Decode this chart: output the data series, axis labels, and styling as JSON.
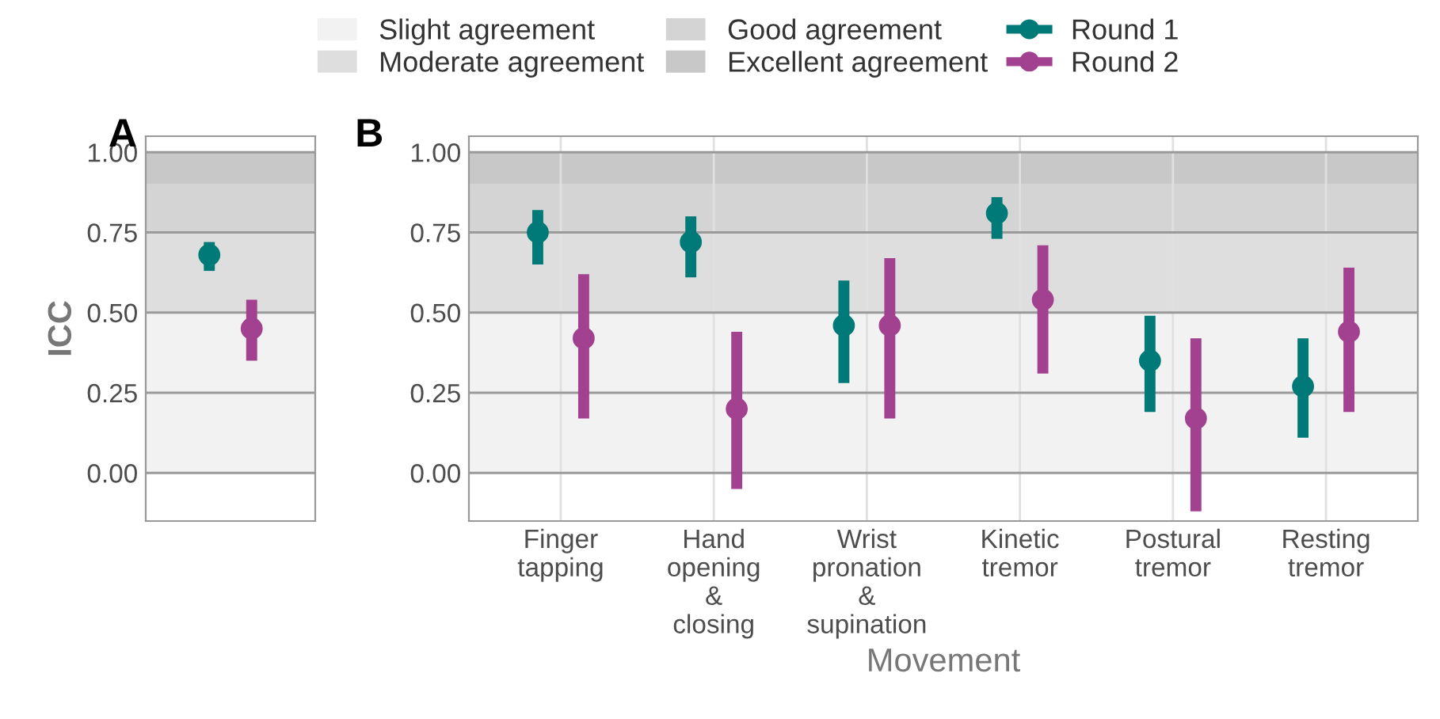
{
  "chart_data": [
    {
      "type": "scatter",
      "title": "A",
      "ylabel": "ICC",
      "categories": [
        null
      ],
      "ylim": [
        -0.15,
        1.05
      ],
      "yticks": [
        {
          "value": 0,
          "label": "0.00"
        },
        {
          "value": 0.25,
          "label": "0.25"
        },
        {
          "value": 0.5,
          "label": "0.50"
        },
        {
          "value": 0.75,
          "label": "0.75"
        },
        {
          "value": 1,
          "label": "1.00"
        }
      ],
      "grid": true,
      "marker": "circle",
      "legend": "top",
      "bands": [
        {
          "axis": "y",
          "from": 0,
          "to": 0.5,
          "label": "Slight agreement",
          "color": "#f2f2f2"
        },
        {
          "axis": "y",
          "from": 0.5,
          "to": 0.75,
          "label": "Moderate agreement",
          "color": "#dedede"
        },
        {
          "axis": "y",
          "from": 0.75,
          "to": 0.9,
          "label": "Good agreement",
          "color": "#d4d4d4"
        },
        {
          "axis": "y",
          "from": 0.9,
          "to": 1.0,
          "label": "Excellent agreement",
          "color": "#c8c8c8"
        }
      ],
      "series": [
        {
          "name": "Round 1",
          "color": "#007a78",
          "values": [
            0.68
          ],
          "errors": [
            [
              0.63,
              0.72
            ]
          ]
        },
        {
          "name": "Round 2",
          "color": "#a2418f",
          "values": [
            0.45
          ],
          "errors": [
            [
              0.35,
              0.54
            ]
          ]
        }
      ]
    },
    {
      "type": "scatter",
      "title": "B",
      "xlabel": "Movement",
      "categories": [
        "Finger\ntapping",
        "Hand\nopening\n&\nclosing",
        "Wrist\npronation\n&\nsupination",
        "Kinetic\ntremor",
        "Postural\ntremor",
        "Resting\ntremor"
      ],
      "ylim": [
        -0.15,
        1.05
      ],
      "yticks": [
        {
          "value": 0,
          "label": "0.00"
        },
        {
          "value": 0.25,
          "label": "0.25"
        },
        {
          "value": 0.5,
          "label": "0.50"
        },
        {
          "value": 0.75,
          "label": "0.75"
        },
        {
          "value": 1,
          "label": "1.00"
        }
      ],
      "grid": true,
      "marker": "circle",
      "bands": [
        {
          "axis": "y",
          "from": 0,
          "to": 0.5,
          "color": "#f2f2f2"
        },
        {
          "axis": "y",
          "from": 0.5,
          "to": 0.75,
          "color": "#dedede"
        },
        {
          "axis": "y",
          "from": 0.75,
          "to": 0.9,
          "color": "#d4d4d4"
        },
        {
          "axis": "y",
          "from": 0.9,
          "to": 1.0,
          "color": "#c8c8c8"
        }
      ],
      "series": [
        {
          "color": "#007a78",
          "values": [
            0.75,
            0.72,
            0.46,
            0.81,
            0.35,
            0.27
          ],
          "errors": [
            [
              0.65,
              0.82
            ],
            [
              0.61,
              0.8
            ],
            [
              0.28,
              0.6
            ],
            [
              0.73,
              0.86
            ],
            [
              0.19,
              0.49
            ],
            [
              0.11,
              0.42
            ]
          ]
        },
        {
          "color": "#a2418f",
          "values": [
            0.42,
            0.2,
            0.46,
            0.54,
            0.17,
            0.44
          ],
          "errors": [
            [
              0.17,
              0.62
            ],
            [
              -0.05,
              0.44
            ],
            [
              0.17,
              0.67
            ],
            [
              0.31,
              0.71
            ],
            [
              -0.12,
              0.42
            ],
            [
              0.19,
              0.64
            ]
          ]
        }
      ]
    }
  ]
}
